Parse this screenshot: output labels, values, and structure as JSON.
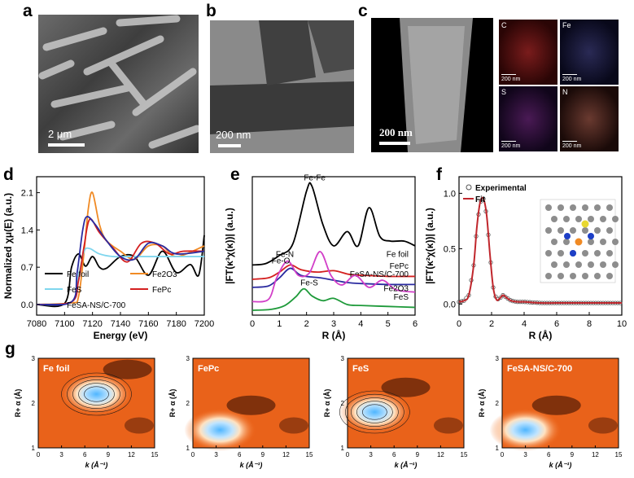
{
  "panels": {
    "a": {
      "label": "a",
      "scale": "2 μm"
    },
    "b": {
      "label": "b",
      "scale": "200 nm"
    },
    "c": {
      "label": "c",
      "scale": "200 nm",
      "maps": [
        {
          "element": "C",
          "scale": "200 nm",
          "color": "#b0262a"
        },
        {
          "element": "Fe",
          "scale": "200 nm",
          "color": "#4a4aa0"
        },
        {
          "element": "S",
          "scale": "200 nm",
          "color": "#9a3aa0"
        },
        {
          "element": "N",
          "scale": "200 nm",
          "color": "#b06a55"
        }
      ]
    },
    "d": {
      "label": "d"
    },
    "e": {
      "label": "e"
    },
    "f": {
      "label": "f"
    },
    "g": {
      "label": "g"
    }
  },
  "chart_data": [
    {
      "id": "d",
      "type": "line",
      "xlabel": "Energy (eV)",
      "ylabel": "Normalized χμ(E) (a.u.)",
      "xlim": [
        7080,
        7200
      ],
      "ylim": [
        -0.2,
        2.4
      ],
      "xticks": [
        "7080",
        "7100",
        "7120",
        "7140",
        "7160",
        "7180",
        "7200"
      ],
      "yticks": [
        "0.0",
        "0.7",
        "1.4",
        "2.1"
      ],
      "legend_position": "lower-left",
      "series": [
        {
          "name": "Fe foil",
          "color": "#000000",
          "x": [
            7080,
            7100,
            7105,
            7110,
            7115,
            7120,
            7125,
            7130,
            7140,
            7150,
            7160,
            7170,
            7180,
            7190,
            7196,
            7200
          ],
          "y": [
            0.0,
            0.02,
            0.7,
            0.95,
            0.72,
            0.9,
            0.7,
            0.68,
            0.9,
            0.9,
            0.55,
            1.0,
            0.6,
            0.75,
            0.55,
            1.3
          ]
        },
        {
          "name": "Fe2O3",
          "color": "#f08a24",
          "x": [
            7080,
            7105,
            7110,
            7114,
            7117,
            7120,
            7125,
            7130,
            7140,
            7150,
            7160,
            7170,
            7180,
            7200
          ],
          "y": [
            0.0,
            0.03,
            0.15,
            1.0,
            1.8,
            2.1,
            1.5,
            1.2,
            1.0,
            0.85,
            1.1,
            1.1,
            0.9,
            1.1
          ]
        },
        {
          "name": "FeS",
          "color": "#7fd6ee",
          "x": [
            7080,
            7105,
            7110,
            7114,
            7118,
            7125,
            7135,
            7145,
            7160,
            7175,
            7200
          ],
          "y": [
            0.0,
            0.05,
            0.55,
            1.0,
            1.05,
            0.95,
            0.9,
            0.9,
            0.9,
            0.9,
            0.9
          ]
        },
        {
          "name": "FePc",
          "color": "#d42020",
          "x": [
            7080,
            7105,
            7110,
            7114,
            7118,
            7125,
            7135,
            7145,
            7155,
            7165,
            7175,
            7185,
            7200
          ],
          "y": [
            0.0,
            0.05,
            0.45,
            1.1,
            1.6,
            1.35,
            1.05,
            0.8,
            1.15,
            1.15,
            0.95,
            1.0,
            1.0
          ]
        },
        {
          "name": "FeSA-NS/C-700",
          "color": "#2b2ba0",
          "x": [
            7080,
            7105,
            7109,
            7113,
            7116,
            7122,
            7130,
            7140,
            7150,
            7160,
            7170,
            7180,
            7200
          ],
          "y": [
            0.0,
            0.05,
            0.6,
            1.4,
            1.65,
            1.5,
            1.2,
            0.9,
            0.85,
            1.15,
            1.1,
            0.95,
            1.0
          ]
        }
      ]
    },
    {
      "id": "e",
      "type": "line",
      "xlabel": "R (Å)",
      "ylabel": "|FT(κ³χ(κ))| (a.u.)",
      "xlim": [
        0,
        6
      ],
      "xticks": [
        "0",
        "1",
        "2",
        "3",
        "4",
        "5",
        "6"
      ],
      "annotations": [
        "Fe-Fe",
        "Fe-N",
        "Fe-O",
        "Fe-S"
      ],
      "series": [
        {
          "name": "Fe foil",
          "color": "#000000",
          "x": [
            0,
            0.5,
            1.0,
            1.5,
            2.0,
            2.2,
            2.6,
            3.0,
            3.5,
            3.9,
            4.3,
            4.7,
            5.1,
            5.6,
            6.0
          ],
          "y": [
            0.05,
            0.08,
            0.25,
            0.5,
            1.6,
            1.7,
            0.9,
            0.45,
            0.75,
            0.45,
            1.25,
            0.65,
            0.55,
            0.55,
            0.45
          ]
        },
        {
          "name": "FePc",
          "color": "#d42020",
          "x": [
            0,
            0.6,
            1.0,
            1.4,
            1.8,
            2.4,
            3.0,
            3.6,
            4.2,
            5.0,
            6.0
          ],
          "y": [
            0.0,
            0.03,
            0.15,
            0.3,
            0.2,
            0.15,
            0.18,
            0.1,
            0.08,
            0.06,
            0.06
          ]
        },
        {
          "name": "FeSA-NS/C-700",
          "color": "#2b2ba0",
          "x": [
            0,
            0.6,
            1.0,
            1.4,
            1.8,
            2.5,
            3.0,
            3.5,
            4.0,
            5.0,
            6.0
          ],
          "y": [
            0.0,
            0.03,
            0.2,
            0.4,
            0.25,
            0.2,
            0.15,
            0.1,
            0.08,
            0.06,
            0.06
          ]
        },
        {
          "name": "Fe2O3",
          "color": "#d23fc8",
          "x": [
            0,
            0.6,
            0.9,
            1.3,
            1.7,
            2.1,
            2.5,
            2.9,
            3.3,
            3.8,
            4.3,
            4.8,
            5.3,
            6.0
          ],
          "y": [
            0.0,
            0.05,
            0.5,
            0.85,
            0.55,
            0.6,
            1.05,
            0.55,
            0.35,
            0.55,
            0.3,
            0.45,
            0.25,
            0.2
          ]
        },
        {
          "name": "FeS",
          "color": "#1e9a3a",
          "x": [
            0,
            0.7,
            1.2,
            1.6,
            1.9,
            2.2,
            2.6,
            3.0,
            3.5,
            4.0,
            5.0,
            6.0
          ],
          "y": [
            0.0,
            0.02,
            0.1,
            0.28,
            0.45,
            0.3,
            0.2,
            0.25,
            0.12,
            0.1,
            0.08,
            0.06
          ]
        }
      ]
    },
    {
      "id": "f",
      "type": "scatter",
      "xlabel": "R (Å)",
      "ylabel": "|FT(κ²χ(κ))| (a.u.)",
      "xlim": [
        0,
        10
      ],
      "ylim": [
        -0.1,
        1.15
      ],
      "xticks": [
        "0",
        "2",
        "4",
        "6",
        "8",
        "10"
      ],
      "yticks": [
        "0.0",
        "0.5",
        "1.0"
      ],
      "legend_position": "top-left",
      "series": [
        {
          "name": "Experimental",
          "color": "#555555",
          "marker": "open-circle",
          "x": [
            0,
            0.3,
            0.6,
            0.9,
            1.1,
            1.3,
            1.5,
            1.7,
            1.9,
            2.1,
            2.3,
            2.5,
            2.7,
            2.9,
            3.2,
            3.6,
            4.0,
            5,
            6,
            7,
            8,
            9,
            10
          ],
          "y": [
            0.02,
            0.03,
            0.08,
            0.35,
            0.7,
            0.92,
            0.95,
            0.8,
            0.45,
            0.15,
            0.04,
            0.05,
            0.08,
            0.06,
            0.03,
            0.02,
            0.02,
            0.01,
            0.01,
            0.01,
            0.01,
            0.01,
            0.01
          ]
        },
        {
          "name": "Fit",
          "color": "#c0262c",
          "marker": "line",
          "x": [
            0,
            0.3,
            0.6,
            0.9,
            1.1,
            1.3,
            1.5,
            1.7,
            1.9,
            2.1,
            2.3,
            2.5,
            2.7,
            2.9,
            3.2,
            3.6,
            4.0,
            5,
            6,
            7,
            8,
            9,
            10
          ],
          "y": [
            0.02,
            0.03,
            0.08,
            0.35,
            0.7,
            0.92,
            0.95,
            0.8,
            0.45,
            0.15,
            0.04,
            0.05,
            0.08,
            0.06,
            0.03,
            0.02,
            0.02,
            0.01,
            0.01,
            0.01,
            0.01,
            0.01,
            0.01
          ]
        }
      ]
    },
    {
      "id": "g",
      "type": "heatmap",
      "xlabel": "k (Å⁻¹)",
      "ylabel": "R+ α (Å)",
      "xlim": [
        0,
        15
      ],
      "ylim": [
        1,
        3
      ],
      "xticks": [
        "0",
        "3",
        "6",
        "9",
        "12",
        "15"
      ],
      "yticks": [
        "1",
        "2",
        "3"
      ],
      "maps": [
        {
          "title": "Fe foil",
          "hot_center_k": 7.5,
          "hot_center_r": 2.2,
          "contours": true
        },
        {
          "title": "FePc",
          "hot_center_k": 3.5,
          "hot_center_r": 1.4,
          "contours": false
        },
        {
          "title": "FeS",
          "hot_center_k": 3.5,
          "hot_center_r": 1.8,
          "contours": true
        },
        {
          "title": "FeSA-NS/C-700",
          "hot_center_k": 3.0,
          "hot_center_r": 1.4,
          "contours": false
        }
      ]
    }
  ]
}
